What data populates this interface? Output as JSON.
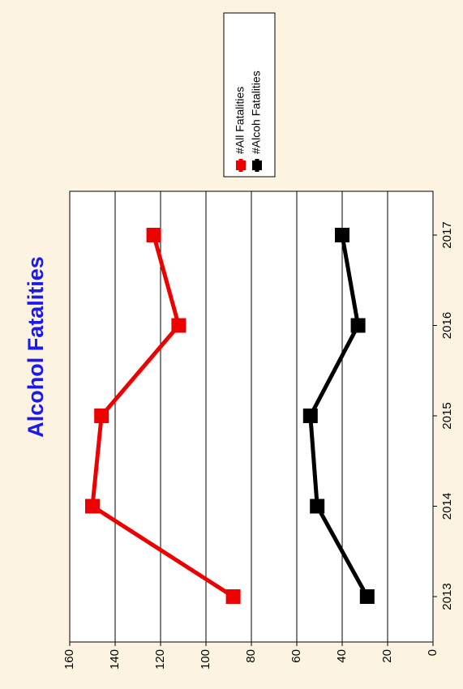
{
  "chart_data": {
    "type": "line",
    "title": "Alcohol Fatalities",
    "orientation": "rotated-90-clockwise",
    "categories": [
      "2013",
      "2014",
      "2015",
      "2016",
      "2017"
    ],
    "series": [
      {
        "name": "#All Fatalities",
        "values": [
          88,
          150,
          146,
          112,
          123
        ],
        "color": "#ee0000"
      },
      {
        "name": "#Alcoh Fatalities",
        "values": [
          29,
          51,
          54,
          33,
          40
        ],
        "color": "#000000"
      }
    ],
    "y_ticks": [
      "0",
      "20",
      "40",
      "60",
      "80",
      "100",
      "120",
      "140",
      "160"
    ],
    "ylim": [
      0,
      160
    ],
    "grid": true,
    "legend_position": "top-right",
    "colors": {
      "background": "#fdf3e1",
      "plot_background": "#ffffff",
      "title": "#1a1aee"
    }
  }
}
